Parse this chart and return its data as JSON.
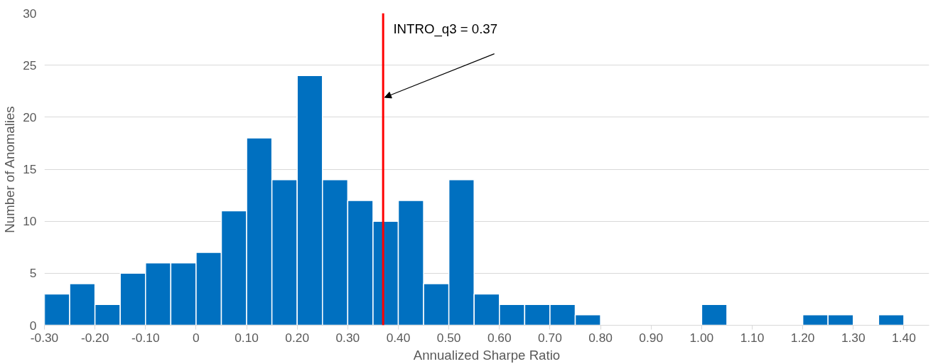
{
  "chart_data": {
    "type": "histogram",
    "xlabel": "Annualized Sharpe Ratio",
    "ylabel": "Number of Anomalies",
    "bins": [
      -0.3,
      -0.25,
      -0.2,
      -0.15,
      -0.1,
      -0.05,
      0.0,
      0.05,
      0.1,
      0.15,
      0.2,
      0.25,
      0.3,
      0.35,
      0.4,
      0.45,
      0.5,
      0.55,
      0.6,
      0.65,
      0.7,
      0.75,
      0.8,
      0.85,
      0.9,
      0.95,
      1.0,
      1.05,
      1.1,
      1.15,
      1.2,
      1.25,
      1.3,
      1.35,
      1.4
    ],
    "values": [
      3,
      4,
      2,
      5,
      6,
      6,
      7,
      11,
      18,
      14,
      24,
      14,
      12,
      10,
      12,
      4,
      14,
      3,
      2,
      2,
      2,
      1,
      0,
      0,
      0,
      0,
      2,
      0,
      0,
      0,
      1,
      1,
      0,
      1
    ],
    "color": "#0070c0",
    "xlim": [
      -0.3,
      1.45
    ],
    "xticks": [
      {
        "value": -0.3,
        "label": "-0.30"
      },
      {
        "value": -0.2,
        "label": "-0.20"
      },
      {
        "value": -0.1,
        "label": "-0.10"
      },
      0,
      {
        "value": 0.1,
        "label": "0.10"
      },
      {
        "value": 0.2,
        "label": "0.20"
      },
      {
        "value": 0.3,
        "label": "0.30"
      },
      {
        "value": 0.4,
        "label": "0.40"
      },
      {
        "value": 0.5,
        "label": "0.50"
      },
      {
        "value": 0.6,
        "label": "0.60"
      },
      {
        "value": 0.7,
        "label": "0.70"
      },
      {
        "value": 0.8,
        "label": "0.80"
      },
      {
        "value": 0.9,
        "label": "0.90"
      },
      {
        "value": 1.0,
        "label": "1.00"
      },
      {
        "value": 1.1,
        "label": "1.10"
      },
      {
        "value": 1.2,
        "label": "1.20"
      },
      {
        "value": 1.3,
        "label": "1.30"
      },
      {
        "value": 1.4,
        "label": "1.40"
      }
    ],
    "ylim": [
      0,
      30
    ],
    "yticks": [
      0,
      5,
      10,
      15,
      20,
      25,
      30
    ],
    "grid": "y",
    "ref_lines": [
      {
        "axis": "x",
        "value": 0.37,
        "label": "INTRO_q3 = 0.37",
        "color": "#ff0000"
      }
    ]
  }
}
